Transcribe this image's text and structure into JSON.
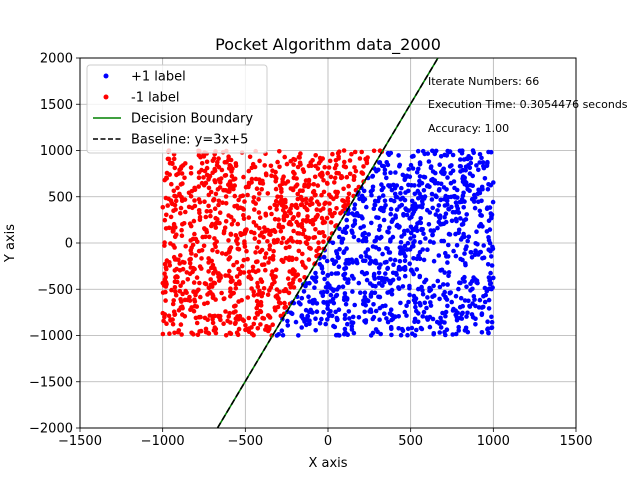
{
  "chart_data": {
    "type": "scatter",
    "title": "Pocket Algorithm data_2000",
    "xlabel": "X axis",
    "ylabel": "Y axis",
    "xlim": [
      -1500,
      1500
    ],
    "ylim": [
      -2000,
      2000
    ],
    "xticks": [
      -1500,
      -1000,
      -500,
      0,
      500,
      1000,
      1500
    ],
    "yticks": [
      -2000,
      -1500,
      -1000,
      -500,
      0,
      500,
      1000,
      1500,
      2000
    ],
    "xtick_labels": [
      "−1500",
      "−1000",
      "−500",
      "0",
      "500",
      "1000",
      "1500"
    ],
    "ytick_labels": [
      "−2000",
      "−1500",
      "−1000",
      "−500",
      "0",
      "500",
      "1000",
      "1500",
      "2000"
    ],
    "grid": true,
    "legend_position": "top-left",
    "series": [
      {
        "name": "+1 label",
        "kind": "scatter",
        "color": "#0000ff",
        "count": 1000,
        "x_range": [
          -1000,
          1000
        ],
        "y_range": [
          -1000,
          1000
        ],
        "region": "y < 3x + 5"
      },
      {
        "name": "-1 label",
        "kind": "scatter",
        "color": "#ff0000",
        "count": 1000,
        "x_range": [
          -1000,
          1000
        ],
        "y_range": [
          -1000,
          1000
        ],
        "region": "y > 3x + 5"
      },
      {
        "name": "Decision Boundary",
        "kind": "line",
        "color": "#008000",
        "style": "solid",
        "slope": 3,
        "intercept": 5
      },
      {
        "name": "Baseline: y=3x+5",
        "kind": "line",
        "color": "#000000",
        "style": "dashed",
        "slope": 3,
        "intercept": 5
      }
    ],
    "annotations": [
      "Iterate Numbers: 66",
      "Execution Time: 0.3054476 seconds",
      "Accuracy: 1.00"
    ]
  }
}
